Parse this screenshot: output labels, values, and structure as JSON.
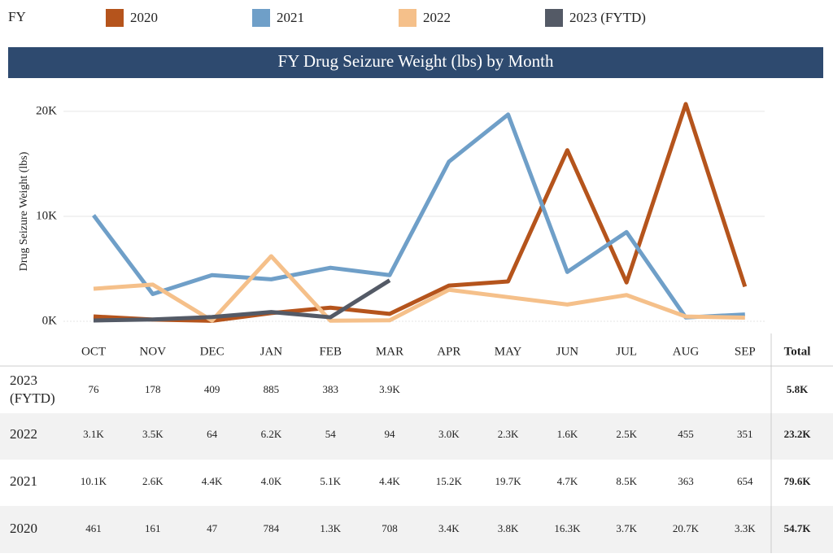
{
  "legend_title": "FY",
  "total_header": "Total",
  "chart_data": {
    "type": "line",
    "title": "FY Drug Seizure Weight (lbs) by Month",
    "y_label": "Drug Seizure Weight (lbs)",
    "categories": [
      "OCT",
      "NOV",
      "DEC",
      "JAN",
      "FEB",
      "MAR",
      "APR",
      "MAY",
      "JUN",
      "JUL",
      "AUG",
      "SEP"
    ],
    "ylim": [
      0,
      21000
    ],
    "yticks": [
      {
        "value": 0,
        "label": "0K"
      },
      {
        "value": 10000,
        "label": "10K"
      },
      {
        "value": 20000,
        "label": "20K"
      }
    ],
    "grid": true,
    "series": [
      {
        "name": "2020",
        "color": "#b5541c",
        "values": [
          461,
          161,
          47,
          784,
          1300,
          708,
          3400,
          3800,
          16300,
          3700,
          20700,
          3300
        ],
        "value_labels": [
          "461",
          "161",
          "47",
          "784",
          "1.3K",
          "708",
          "3.4K",
          "3.8K",
          "16.3K",
          "3.7K",
          "20.7K",
          "3.3K"
        ],
        "total": "54.7K"
      },
      {
        "name": "2021",
        "color": "#6f9fc8",
        "values": [
          10100,
          2600,
          4400,
          4000,
          5100,
          4400,
          15200,
          19700,
          4700,
          8500,
          363,
          654
        ],
        "value_labels": [
          "10.1K",
          "2.6K",
          "4.4K",
          "4.0K",
          "5.1K",
          "4.4K",
          "15.2K",
          "19.7K",
          "4.7K",
          "8.5K",
          "363",
          "654"
        ],
        "total": "79.6K"
      },
      {
        "name": "2022",
        "color": "#f5c08a",
        "values": [
          3100,
          3500,
          64,
          6200,
          54,
          94,
          3000,
          2300,
          1600,
          2500,
          455,
          351
        ],
        "value_labels": [
          "3.1K",
          "3.5K",
          "64",
          "6.2K",
          "54",
          "94",
          "3.0K",
          "2.3K",
          "1.6K",
          "2.5K",
          "455",
          "351"
        ],
        "total": "23.2K"
      },
      {
        "name": "2023 (FYTD)",
        "color": "#545a66",
        "values": [
          76,
          178,
          409,
          885,
          383,
          3900,
          null,
          null,
          null,
          null,
          null,
          null
        ],
        "value_labels": [
          "76",
          "178",
          "409",
          "885",
          "383",
          "3.9K",
          null,
          null,
          null,
          null,
          null,
          null
        ],
        "total": "5.8K"
      }
    ]
  }
}
